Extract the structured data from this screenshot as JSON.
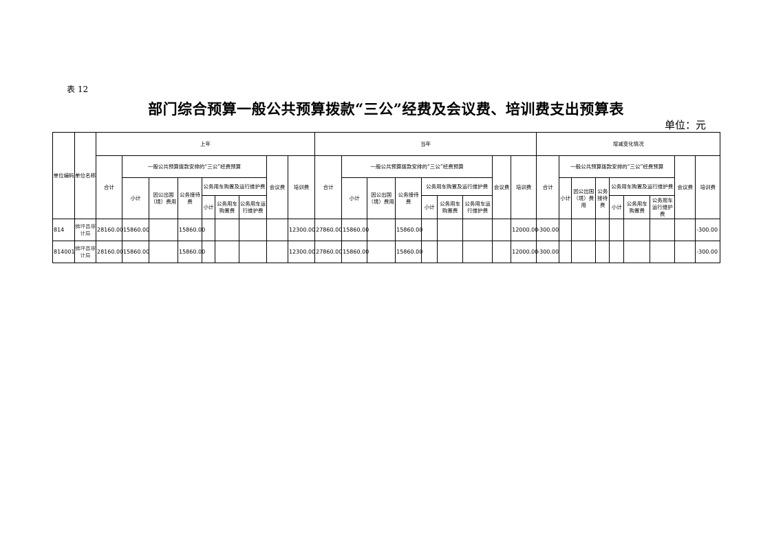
{
  "table_no": "表 12",
  "title": "部门综合预算一般公共预算拨款“三公”经费及会议费、培训费支出预算表",
  "unit": "单位：元",
  "headers": {
    "code": "单位编码",
    "name": "单位名称",
    "groups": [
      "上年",
      "当年",
      "增减变化情况"
    ],
    "total": "合计",
    "sangong": "一般公共预算拨款安排的“三公”经费预算",
    "subtotal": "小计",
    "abroad": "因公出国（境）费用",
    "reception": "公务接待费",
    "vehicle": "公务用车购置及运行维护费",
    "vehicle_sub": "小计",
    "vehicle_buy": "公务用车购置费",
    "vehicle_run": "公务用车运行维护费",
    "meeting": "会议费",
    "training": "培训费"
  },
  "rows": [
    {
      "code": "814",
      "name": "佛坪县审计局",
      "values": [
        "28160.00",
        "15860.00",
        "",
        "15860.00",
        "",
        "",
        "",
        "",
        "12300.00",
        "27860.00",
        "15860.00",
        "",
        "15860.00",
        "",
        "",
        "",
        "",
        "12000.00",
        "-300.00",
        "",
        "",
        "",
        "",
        "",
        "",
        "",
        "-300.00"
      ]
    },
    {
      "code": "814001",
      "name": "佛坪县审计局",
      "values": [
        "28160.00",
        "15860.00",
        "",
        "15860.00",
        "",
        "",
        "",
        "",
        "12300.00",
        "27860.00",
        "15860.00",
        "",
        "15860.00",
        "",
        "",
        "",
        "",
        "12000.00",
        "-300.00",
        "",
        "",
        "",
        "",
        "",
        "",
        "",
        "-300.00"
      ]
    }
  ]
}
